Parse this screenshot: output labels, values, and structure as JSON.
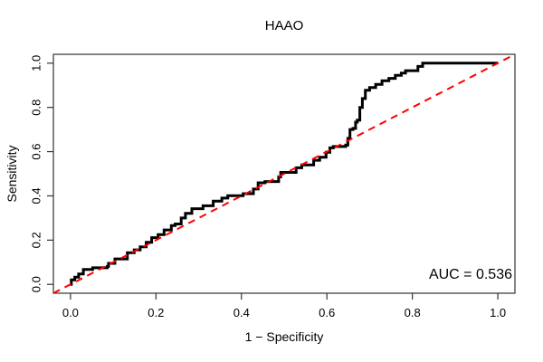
{
  "chart_data": {
    "type": "line",
    "subtype": "roc-curve",
    "title": "HAAO",
    "xlabel": "1 − Specificity",
    "ylabel": "Sensitivity",
    "annotation": "AUC = 0.536",
    "auc": 0.536,
    "grid": false,
    "legend": "none",
    "xlim": [
      -0.04,
      1.04
    ],
    "ylim": [
      -0.04,
      1.04
    ],
    "xticks": [
      0.0,
      0.2,
      0.4,
      0.6,
      0.8,
      1.0
    ],
    "yticks": [
      0.0,
      0.2,
      0.4,
      0.6,
      0.8,
      1.0
    ],
    "xtick_labels": [
      "0.0",
      "0.2",
      "0.4",
      "0.6",
      "0.8",
      "1.0"
    ],
    "ytick_labels": [
      "0.0",
      "0.2",
      "0.4",
      "0.6",
      "0.8",
      "1.0"
    ],
    "axis_color": "#333333",
    "series": [
      {
        "id": "roc-curve-line",
        "name": "ROC step curve",
        "color": "#000000",
        "width": 3,
        "style": "solid",
        "points": [
          [
            0.0,
            0.0
          ],
          [
            0.002,
            0.0
          ],
          [
            0.002,
            0.02
          ],
          [
            0.01,
            0.02
          ],
          [
            0.01,
            0.033
          ],
          [
            0.019,
            0.033
          ],
          [
            0.019,
            0.047
          ],
          [
            0.03,
            0.047
          ],
          [
            0.03,
            0.067
          ],
          [
            0.052,
            0.067
          ],
          [
            0.052,
            0.075
          ],
          [
            0.086,
            0.075
          ],
          [
            0.086,
            0.081
          ],
          [
            0.089,
            0.081
          ],
          [
            0.089,
            0.095
          ],
          [
            0.104,
            0.095
          ],
          [
            0.104,
            0.115
          ],
          [
            0.133,
            0.115
          ],
          [
            0.133,
            0.143
          ],
          [
            0.149,
            0.143
          ],
          [
            0.149,
            0.156
          ],
          [
            0.163,
            0.156
          ],
          [
            0.163,
            0.17
          ],
          [
            0.177,
            0.17
          ],
          [
            0.177,
            0.19
          ],
          [
            0.19,
            0.19
          ],
          [
            0.19,
            0.211
          ],
          [
            0.205,
            0.211
          ],
          [
            0.205,
            0.225
          ],
          [
            0.219,
            0.225
          ],
          [
            0.219,
            0.246
          ],
          [
            0.236,
            0.246
          ],
          [
            0.236,
            0.266
          ],
          [
            0.245,
            0.266
          ],
          [
            0.245,
            0.273
          ],
          [
            0.259,
            0.273
          ],
          [
            0.259,
            0.3
          ],
          [
            0.269,
            0.3
          ],
          [
            0.269,
            0.321
          ],
          [
            0.284,
            0.321
          ],
          [
            0.284,
            0.342
          ],
          [
            0.31,
            0.342
          ],
          [
            0.31,
            0.355
          ],
          [
            0.334,
            0.355
          ],
          [
            0.334,
            0.376
          ],
          [
            0.354,
            0.376
          ],
          [
            0.354,
            0.39
          ],
          [
            0.368,
            0.39
          ],
          [
            0.368,
            0.401
          ],
          [
            0.404,
            0.401
          ],
          [
            0.404,
            0.41
          ],
          [
            0.428,
            0.41
          ],
          [
            0.428,
            0.431
          ],
          [
            0.439,
            0.431
          ],
          [
            0.439,
            0.459
          ],
          [
            0.455,
            0.459
          ],
          [
            0.455,
            0.465
          ],
          [
            0.487,
            0.465
          ],
          [
            0.487,
            0.486
          ],
          [
            0.492,
            0.486
          ],
          [
            0.492,
            0.506
          ],
          [
            0.528,
            0.506
          ],
          [
            0.528,
            0.527
          ],
          [
            0.541,
            0.527
          ],
          [
            0.541,
            0.54
          ],
          [
            0.569,
            0.54
          ],
          [
            0.569,
            0.561
          ],
          [
            0.583,
            0.561
          ],
          [
            0.583,
            0.575
          ],
          [
            0.598,
            0.575
          ],
          [
            0.598,
            0.597
          ],
          [
            0.607,
            0.597
          ],
          [
            0.607,
            0.617
          ],
          [
            0.615,
            0.617
          ],
          [
            0.615,
            0.623
          ],
          [
            0.644,
            0.623
          ],
          [
            0.644,
            0.63
          ],
          [
            0.649,
            0.63
          ],
          [
            0.649,
            0.66
          ],
          [
            0.654,
            0.66
          ],
          [
            0.654,
            0.7
          ],
          [
            0.661,
            0.7
          ],
          [
            0.661,
            0.705
          ],
          [
            0.667,
            0.705
          ],
          [
            0.667,
            0.733
          ],
          [
            0.671,
            0.733
          ],
          [
            0.671,
            0.742
          ],
          [
            0.677,
            0.742
          ],
          [
            0.677,
            0.8
          ],
          [
            0.683,
            0.8
          ],
          [
            0.683,
            0.84
          ],
          [
            0.69,
            0.84
          ],
          [
            0.69,
            0.877
          ],
          [
            0.7,
            0.877
          ],
          [
            0.7,
            0.89
          ],
          [
            0.714,
            0.89
          ],
          [
            0.714,
            0.904
          ],
          [
            0.729,
            0.904
          ],
          [
            0.729,
            0.92
          ],
          [
            0.745,
            0.92
          ],
          [
            0.745,
            0.931
          ],
          [
            0.76,
            0.931
          ],
          [
            0.76,
            0.945
          ],
          [
            0.774,
            0.945
          ],
          [
            0.774,
            0.955
          ],
          [
            0.784,
            0.955
          ],
          [
            0.784,
            0.966
          ],
          [
            0.813,
            0.966
          ],
          [
            0.813,
            0.985
          ],
          [
            0.824,
            0.985
          ],
          [
            0.824,
            1.0
          ],
          [
            1.0,
            1.0
          ]
        ]
      },
      {
        "id": "diagonal-reference-line",
        "name": "Chance reference diagonal",
        "color": "#FF0000",
        "width": 2,
        "style": "dashed",
        "points": [
          [
            -0.04,
            -0.04
          ],
          [
            1.04,
            1.04
          ]
        ]
      }
    ]
  }
}
